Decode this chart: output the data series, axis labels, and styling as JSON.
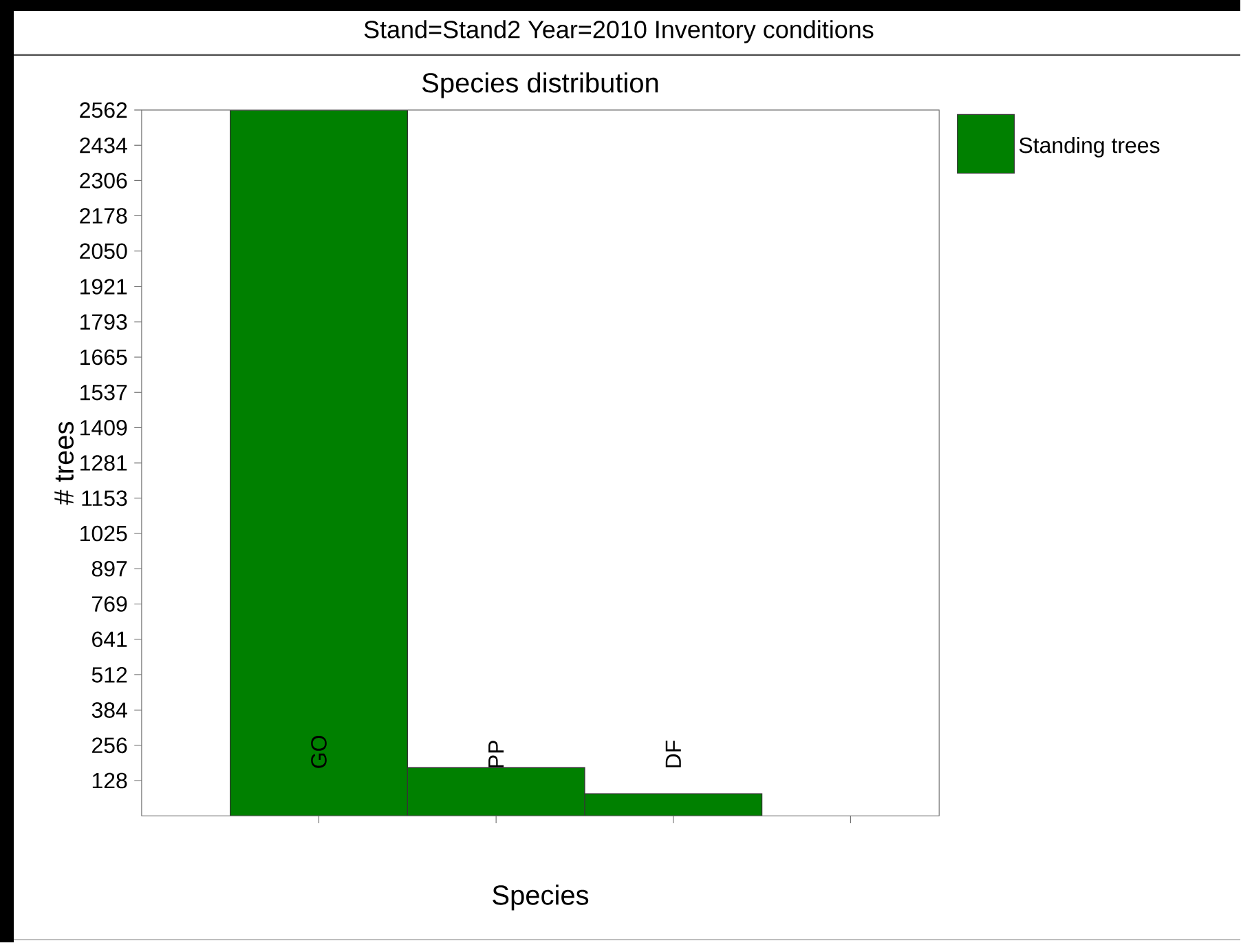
{
  "chart_data": {
    "type": "bar",
    "title": "Stand=Stand2 Year=2010 Inventory conditions",
    "subtitle": "Species distribution",
    "xlabel": "Species",
    "ylabel": "# trees",
    "categories": [
      "GO",
      "PP",
      "DF",
      null
    ],
    "series": [
      {
        "name": "Standing trees",
        "color": "#008000",
        "values": [
          2562,
          175,
          80,
          null
        ]
      }
    ],
    "ylim": [
      0,
      2562
    ],
    "yticks": [
      128,
      256,
      384,
      512,
      641,
      769,
      897,
      1025,
      1153,
      1281,
      1409,
      1537,
      1665,
      1793,
      1921,
      2050,
      2178,
      2306,
      2434,
      2562
    ],
    "grid": false,
    "legend": "right"
  }
}
